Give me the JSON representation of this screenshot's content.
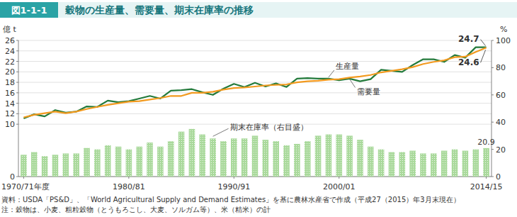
{
  "chart_data": {
    "type": "line",
    "figure_label": "図1-1-1",
    "title": "穀物の生産量、需要量、期末在庫率の推移",
    "y_label": "億 t",
    "y2_label": "%",
    "notes": [
      "資料：USDA「PS&D」、「World Agricultural Supply and Demand Estimates」を基に農林水産省で作成（平成27（2015）年3月末現在）",
      "注：穀物は、小麦、粗粒穀物（とうもろこし、大麦、ソルガム等）、米（精米）の計"
    ],
    "categories": [
      "1970/71年度",
      null,
      null,
      null,
      null,
      null,
      null,
      null,
      null,
      null,
      "1980/81",
      null,
      null,
      null,
      null,
      null,
      null,
      null,
      null,
      null,
      "1990/91",
      null,
      null,
      null,
      null,
      null,
      null,
      null,
      null,
      null,
      "2000/01",
      null,
      null,
      null,
      null,
      null,
      null,
      null,
      null,
      null,
      null,
      null,
      null,
      null,
      "2014/15"
    ],
    "series": [
      {
        "name": "生産量",
        "type": "line",
        "color": "#237a3b",
        "values": [
          11.1,
          11.9,
          11.5,
          12.7,
          12.2,
          12.4,
          13.4,
          13.3,
          14.5,
          14.2,
          14.4,
          14.9,
          15.4,
          14.9,
          16.4,
          16.5,
          16.7,
          16.1,
          15.6,
          16.8,
          17.7,
          17.1,
          17.9,
          17.2,
          17.8,
          17.1,
          18.7,
          18.8,
          18.7,
          18.7,
          18.4,
          18.7,
          18.2,
          18.6,
          20.4,
          20.2,
          20.0,
          21.3,
          22.4,
          22.4,
          21.9,
          23.2,
          22.7,
          24.7,
          24.7
        ],
        "value_labels": [
          null,
          null,
          null,
          null,
          null,
          null,
          null,
          null,
          null,
          null,
          null,
          null,
          null,
          null,
          null,
          null,
          null,
          null,
          null,
          null,
          null,
          null,
          null,
          null,
          null,
          null,
          null,
          null,
          null,
          null,
          null,
          null,
          null,
          null,
          null,
          null,
          null,
          null,
          null,
          null,
          null,
          null,
          null,
          null,
          "24.7"
        ]
      },
      {
        "name": "需要量",
        "type": "line",
        "color": "#f29a1f",
        "values": [
          11.3,
          11.8,
          12.1,
          12.4,
          12.1,
          12.4,
          12.9,
          13.3,
          13.7,
          14.0,
          14.3,
          14.4,
          14.7,
          15.0,
          15.4,
          15.4,
          16.0,
          16.0,
          16.2,
          16.6,
          16.9,
          17.0,
          17.2,
          17.4,
          17.5,
          17.6,
          18.0,
          18.2,
          18.3,
          18.5,
          18.6,
          18.9,
          19.1,
          19.4,
          19.9,
          20.2,
          20.5,
          20.9,
          21.5,
          21.9,
          22.2,
          22.8,
          22.9,
          23.8,
          24.6
        ],
        "value_labels": [
          null,
          null,
          null,
          null,
          null,
          null,
          null,
          null,
          null,
          null,
          null,
          null,
          null,
          null,
          null,
          null,
          null,
          null,
          null,
          null,
          null,
          null,
          null,
          null,
          null,
          null,
          null,
          null,
          null,
          null,
          null,
          null,
          null,
          null,
          null,
          null,
          null,
          null,
          null,
          null,
          null,
          null,
          null,
          null,
          "24.6"
        ]
      },
      {
        "name": "期末在庫率（右目盛）",
        "type": "bar",
        "axis": "y2",
        "color": "#a9d99b",
        "values": [
          16,
          18,
          15,
          16,
          17,
          17,
          21,
          20,
          23,
          22,
          20,
          22,
          25,
          22,
          26,
          33,
          35,
          31,
          28,
          26,
          28,
          28,
          30,
          27,
          26,
          23,
          24,
          26,
          30,
          31,
          31,
          30,
          27,
          22,
          20,
          18,
          18,
          19,
          17,
          17,
          19,
          20,
          19,
          20,
          20.9
        ],
        "value_labels": [
          null,
          null,
          null,
          null,
          null,
          null,
          null,
          null,
          null,
          null,
          null,
          null,
          null,
          null,
          null,
          null,
          null,
          null,
          null,
          null,
          null,
          null,
          null,
          null,
          null,
          null,
          null,
          null,
          null,
          null,
          null,
          null,
          null,
          null,
          null,
          null,
          null,
          null,
          null,
          null,
          null,
          null,
          null,
          null,
          "20.9"
        ]
      }
    ],
    "ylim": [
      0,
      26
    ],
    "yticks": [
      0,
      10,
      12,
      14,
      16,
      18,
      20,
      22,
      24,
      26
    ],
    "y2lim": [
      0,
      100
    ],
    "y2ticks": [
      0,
      20,
      40,
      60,
      80,
      100
    ],
    "grid": true
  }
}
